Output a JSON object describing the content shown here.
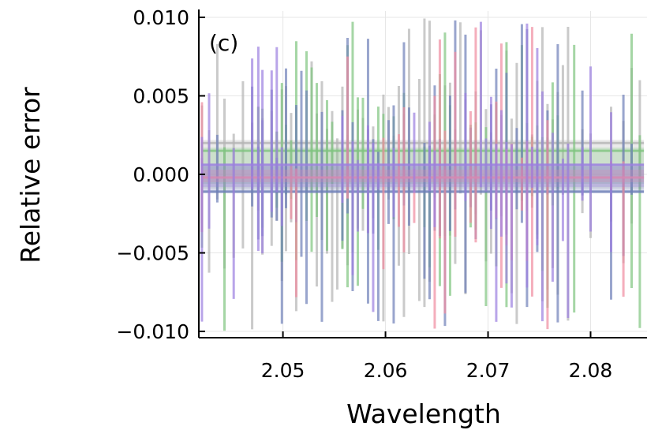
{
  "chart_data": {
    "type": "line",
    "panel_label": "(c)",
    "xlabel": "Wavelength",
    "ylabel": "Relative error",
    "xlim": [
      2.0418,
      2.0855
    ],
    "ylim": [
      -0.0104,
      0.0104
    ],
    "xticks": [
      2.05,
      2.06,
      2.07,
      2.08
    ],
    "xtick_labels": [
      "2.05",
      "2.06",
      "2.07",
      "2.08"
    ],
    "yticks": [
      0.01,
      0.005,
      0.0,
      -0.005,
      -0.01
    ],
    "ytick_labels": [
      "0.010",
      "0.005",
      "0.000",
      "−0.005",
      "−0.010"
    ],
    "clip": [
      -0.01,
      0.01
    ],
    "grid": true,
    "series": [
      {
        "color": "#b4b4b4",
        "band": [
          -0.0009,
          0.0022
        ],
        "line": 0.002,
        "spike_rate": 0.75
      },
      {
        "color": "#7fc47f",
        "band": [
          -0.0006,
          0.0017
        ],
        "line": 0.0015,
        "spike_rate": 0.55
      },
      {
        "color": "#6e7fb8",
        "band": [
          -0.0012,
          0.0005
        ],
        "line": -0.0011,
        "spike_rate": 0.6
      },
      {
        "color": "#f08ca0",
        "band": [
          -0.0005,
          0.0003
        ],
        "line": -0.0002,
        "spike_rate": 0.25
      },
      {
        "color": "#9b7fe0",
        "band": [
          -0.0008,
          0.0007
        ],
        "line": 0.0006,
        "spike_rate": 0.5
      }
    ],
    "absorption_lines": [
      2.0421,
      2.0428,
      2.0436,
      2.0443,
      2.0452,
      2.0461,
      2.047,
      2.0476,
      2.048,
      2.0485,
      2.0489,
      2.0494,
      2.0499,
      2.0503,
      2.0508,
      2.0513,
      2.0518,
      2.0523,
      2.0528,
      2.0533,
      2.0538,
      2.0543,
      2.0548,
      2.0553,
      2.0558,
      2.0563,
      2.0568,
      2.0573,
      2.0578,
      2.0583,
      2.0588,
      2.0593,
      2.0598,
      2.0603,
      2.0608,
      2.0613,
      2.0618,
      2.0623,
      2.0628,
      2.0633,
      2.0638,
      2.0643,
      2.0648,
      2.0653,
      2.0658,
      2.0663,
      2.0668,
      2.0673,
      2.0678,
      2.0683,
      2.0688,
      2.0693,
      2.0698,
      2.0703,
      2.0708,
      2.0713,
      2.0718,
      2.0723,
      2.0728,
      2.0733,
      2.0738,
      2.0743,
      2.0748,
      2.0753,
      2.0758,
      2.0763,
      2.0768,
      2.0773,
      2.0778,
      2.0784,
      2.0792,
      2.08,
      2.081,
      2.082,
      2.0832,
      2.084,
      2.0848
    ]
  }
}
